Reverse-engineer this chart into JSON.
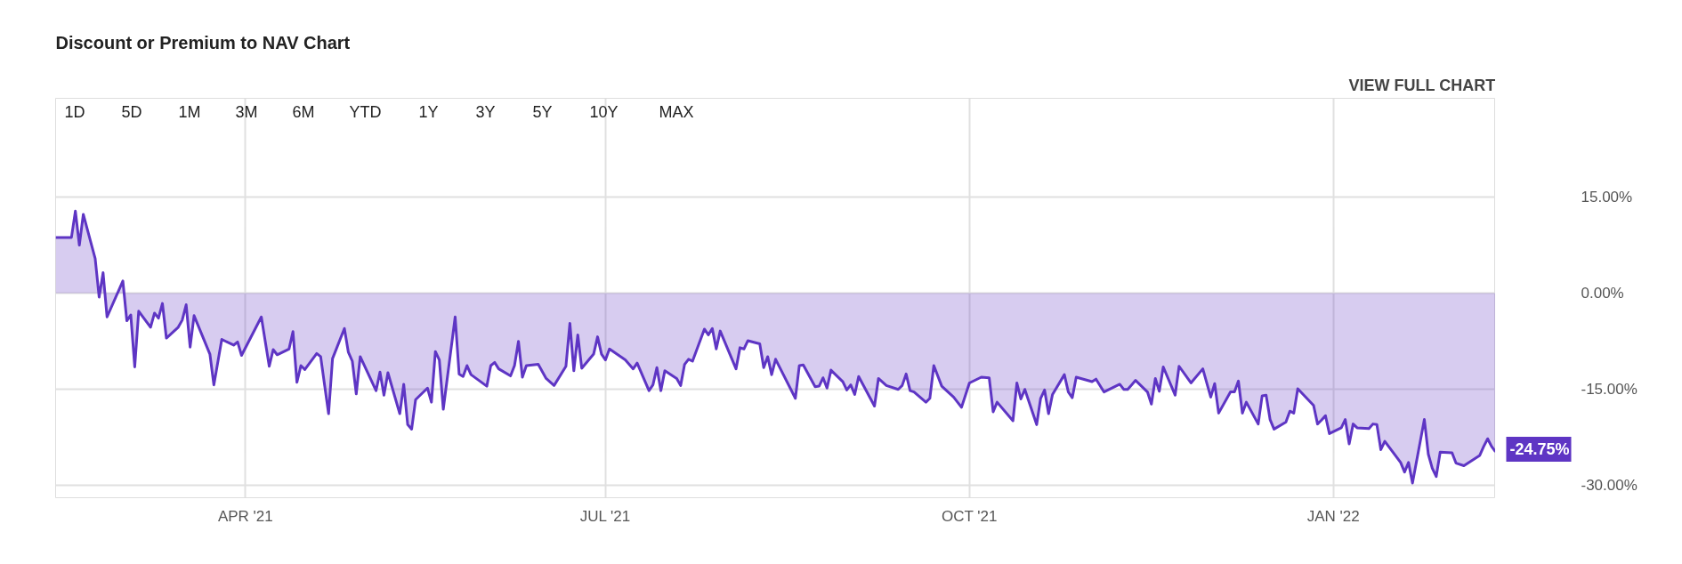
{
  "chart_data": {
    "type": "area",
    "title": "Discount or Premium to NAV Chart",
    "x": [
      "2021-02-12",
      "2021-02-16",
      "2021-02-17",
      "2021-02-18",
      "2021-02-19",
      "2021-02-22",
      "2021-02-23",
      "2021-02-24",
      "2021-02-25",
      "2021-03-01",
      "2021-03-02",
      "2021-03-03",
      "2021-03-04",
      "2021-03-05",
      "2021-03-08",
      "2021-03-09",
      "2021-03-10",
      "2021-03-11",
      "2021-03-12",
      "2021-03-15",
      "2021-03-16",
      "2021-03-17",
      "2021-03-18",
      "2021-03-19",
      "2021-03-23",
      "2021-03-24",
      "2021-03-26",
      "2021-03-29",
      "2021-03-30",
      "2021-03-31",
      "2021-04-05",
      "2021-04-07",
      "2021-04-08",
      "2021-04-09",
      "2021-04-12",
      "2021-04-13",
      "2021-04-14",
      "2021-04-15",
      "2021-04-16",
      "2021-04-19",
      "2021-04-20",
      "2021-04-22",
      "2021-04-23",
      "2021-04-26",
      "2021-04-27",
      "2021-04-28",
      "2021-04-29",
      "2021-04-30",
      "2021-05-04",
      "2021-05-05",
      "2021-05-06",
      "2021-05-07",
      "2021-05-10",
      "2021-05-11",
      "2021-05-12",
      "2021-05-13",
      "2021-05-14",
      "2021-05-17",
      "2021-05-18",
      "2021-05-19",
      "2021-05-20",
      "2021-05-21",
      "2021-05-24",
      "2021-05-25",
      "2021-05-26",
      "2021-05-27",
      "2021-05-28",
      "2021-06-01",
      "2021-06-02",
      "2021-06-03",
      "2021-06-04",
      "2021-06-07",
      "2021-06-08",
      "2021-06-09",
      "2021-06-10",
      "2021-06-11",
      "2021-06-14",
      "2021-06-16",
      "2021-06-18",
      "2021-06-21",
      "2021-06-22",
      "2021-06-23",
      "2021-06-24",
      "2021-06-25",
      "2021-06-28",
      "2021-06-29",
      "2021-06-30",
      "2021-07-01",
      "2021-07-02",
      "2021-07-06",
      "2021-07-08",
      "2021-07-09",
      "2021-07-12",
      "2021-07-13",
      "2021-07-14",
      "2021-07-15",
      "2021-07-16",
      "2021-07-19",
      "2021-07-20",
      "2021-07-21",
      "2021-07-22",
      "2021-07-23",
      "2021-07-26",
      "2021-07-27",
      "2021-07-28",
      "2021-07-29",
      "2021-07-30",
      "2021-08-03",
      "2021-08-04",
      "2021-08-05",
      "2021-08-06",
      "2021-08-09",
      "2021-08-10",
      "2021-08-11",
      "2021-08-12",
      "2021-08-13",
      "2021-08-18",
      "2021-08-19",
      "2021-08-20",
      "2021-08-23",
      "2021-08-24",
      "2021-08-25",
      "2021-08-26",
      "2021-08-27",
      "2021-08-30",
      "2021-08-31",
      "2021-09-01",
      "2021-09-02",
      "2021-09-03",
      "2021-09-07",
      "2021-09-08",
      "2021-09-10",
      "2021-09-13",
      "2021-09-14",
      "2021-09-15",
      "2021-09-16",
      "2021-09-17",
      "2021-09-20",
      "2021-09-21",
      "2021-09-22",
      "2021-09-24",
      "2021-09-27",
      "2021-09-29",
      "2021-10-01",
      "2021-10-04",
      "2021-10-06",
      "2021-10-07",
      "2021-10-08",
      "2021-10-12",
      "2021-10-13",
      "2021-10-14",
      "2021-10-15",
      "2021-10-18",
      "2021-10-19",
      "2021-10-20",
      "2021-10-21",
      "2021-10-22",
      "2021-10-25",
      "2021-10-26",
      "2021-10-27",
      "2021-10-28",
      "2021-11-01",
      "2021-11-02",
      "2021-11-04",
      "2021-11-08",
      "2021-11-09",
      "2021-11-10",
      "2021-11-12",
      "2021-11-15",
      "2021-11-16",
      "2021-11-17",
      "2021-11-18",
      "2021-11-19",
      "2021-11-22",
      "2021-11-23",
      "2021-11-26",
      "2021-11-29",
      "2021-12-01",
      "2021-12-02",
      "2021-12-03",
      "2021-12-06",
      "2021-12-07",
      "2021-12-08",
      "2021-12-09",
      "2021-12-10",
      "2021-12-13",
      "2021-12-14",
      "2021-12-15",
      "2021-12-16",
      "2021-12-17",
      "2021-12-20",
      "2021-12-21",
      "2021-12-22",
      "2021-12-23",
      "2021-12-27",
      "2021-12-28",
      "2021-12-29",
      "2021-12-30",
      "2021-12-31",
      "2022-01-03",
      "2022-01-04",
      "2022-01-05",
      "2022-01-06",
      "2022-01-07",
      "2022-01-10",
      "2022-01-11",
      "2022-01-12",
      "2022-01-13",
      "2022-01-14",
      "2022-01-18",
      "2022-01-19",
      "2022-01-20",
      "2022-01-21",
      "2022-01-24",
      "2022-01-25",
      "2022-01-26",
      "2022-01-27",
      "2022-01-28",
      "2022-01-31",
      "2022-02-01",
      "2022-02-03",
      "2022-02-07",
      "2022-02-08",
      "2022-02-09",
      "2022-02-10",
      "2022-02-11"
    ],
    "series": [
      {
        "color": "#5e35c4",
        "values": [
          8.7,
          8.7,
          12.8,
          7.5,
          12.3,
          5.4,
          -0.6,
          3.2,
          -3.7,
          1.9,
          -4.3,
          -3.4,
          -11.5,
          -2.8,
          -5.3,
          -3.1,
          -3.9,
          -1.6,
          -7.0,
          -5.3,
          -4.2,
          -1.8,
          -8.4,
          -3.5,
          -9.5,
          -14.3,
          -7.2,
          -8.1,
          -7.6,
          -9.7,
          -3.7,
          -11.4,
          -8.8,
          -9.6,
          -8.7,
          -6.0,
          -13.9,
          -11.3,
          -11.9,
          -9.4,
          -9.9,
          -18.8,
          -10.2,
          -5.5,
          -9.2,
          -10.6,
          -15.7,
          -9.9,
          -15.2,
          -12.3,
          -15.9,
          -12.4,
          -18.8,
          -14.2,
          -20.5,
          -21.2,
          -16.6,
          -14.8,
          -17.0,
          -9.1,
          -10.4,
          -18.1,
          -3.7,
          -12.6,
          -13.0,
          -11.3,
          -12.7,
          -14.5,
          -11.3,
          -10.8,
          -11.8,
          -12.9,
          -11.3,
          -7.5,
          -13.1,
          -11.3,
          -11.1,
          -13.3,
          -14.4,
          -11.4,
          -4.7,
          -12.1,
          -6.5,
          -11.7,
          -9.5,
          -6.8,
          -9.5,
          -10.4,
          -8.7,
          -10.4,
          -11.8,
          -10.9,
          -15.2,
          -14.3,
          -11.6,
          -15.2,
          -12.1,
          -13.3,
          -14.4,
          -11.1,
          -10.3,
          -10.6,
          -5.6,
          -6.5,
          -5.5,
          -8.7,
          -5.9,
          -11.8,
          -8.5,
          -8.7,
          -7.4,
          -7.9,
          -11.6,
          -9.9,
          -12.7,
          -10.3,
          -16.4,
          -11.3,
          -11.2,
          -14.6,
          -14.5,
          -13.2,
          -14.8,
          -12.0,
          -13.8,
          -15.1,
          -14.3,
          -15.8,
          -13.0,
          -17.6,
          -13.3,
          -14.4,
          -15.0,
          -14.4,
          -12.6,
          -15.2,
          -15.4,
          -17.0,
          -16.4,
          -11.3,
          -14.5,
          -16.2,
          -17.8,
          -14.0,
          -13.1,
          -13.2,
          -18.5,
          -17.0,
          -19.9,
          -14.0,
          -16.5,
          -15.0,
          -20.5,
          -16.4,
          -15.1,
          -18.8,
          -15.8,
          -12.7,
          -15.4,
          -16.3,
          -13.1,
          -13.8,
          -13.4,
          -15.4,
          -14.2,
          -15.0,
          -15.0,
          -13.6,
          -15.4,
          -17.3,
          -13.3,
          -15.3,
          -11.5,
          -15.9,
          -11.4,
          -14.0,
          -11.8,
          -16.2,
          -14.1,
          -18.7,
          -15.4,
          -15.4,
          -13.7,
          -18.7,
          -17.0,
          -20.4,
          -16.0,
          -15.9,
          -19.7,
          -21.2,
          -20.1,
          -18.4,
          -18.7,
          -14.9,
          -17.5,
          -20.4,
          -19.8,
          -19.1,
          -21.9,
          -21.0,
          -19.7,
          -23.5,
          -20.4,
          -21.0,
          -21.1,
          -20.4,
          -20.5,
          -24.4,
          -23.1,
          -26.4,
          -27.9,
          -26.4,
          -29.6,
          -19.7,
          -25.1,
          -27.3,
          -28.6,
          -24.8,
          -24.9,
          -26.5,
          -26.9,
          -25.3,
          -23.9,
          -22.7,
          -23.9,
          -24.75
        ]
      }
    ],
    "xlim": [
      "2021-02-12",
      "2022-02-11"
    ],
    "xticks": [
      {
        "value": "2021-04-01",
        "label": "APR '21"
      },
      {
        "value": "2021-07-01",
        "label": "JUL '21"
      },
      {
        "value": "2021-10-01",
        "label": "OCT '21"
      },
      {
        "value": "2022-01-01",
        "label": "JAN '22"
      }
    ],
    "ylim": [
      -31.9,
      30.4
    ],
    "yticks": [
      {
        "value": 15,
        "label": "15.00%"
      },
      {
        "value": 0,
        "label": "0.00%"
      },
      {
        "value": -15,
        "label": "-15.00%"
      },
      {
        "value": -30,
        "label": "-30.00%"
      }
    ],
    "grid": true,
    "annotations": [
      {
        "text": "-24.75%",
        "x": "2022-02-11",
        "y": -24.75
      },
      "VIEW FULL CHART",
      "1D",
      "5D",
      "1M",
      "3M",
      "6M",
      "YTD",
      "1Y",
      "3Y",
      "5Y",
      "10Y",
      "MAX"
    ]
  }
}
